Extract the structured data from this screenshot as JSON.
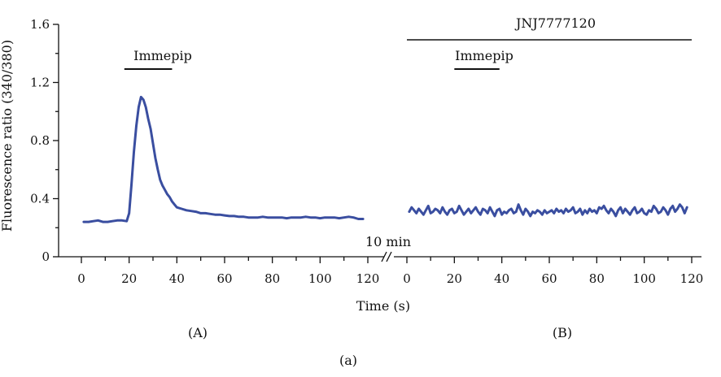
{
  "chart_data": {
    "type": "line",
    "ylabel": "Fluorescence ratio (340/380)",
    "xlabel": "Time (s)",
    "ylim": [
      0,
      1.6
    ],
    "yticks": [
      "0",
      "0.4",
      "0.8",
      "1.2",
      "1.6"
    ],
    "xlim": [
      0,
      120
    ],
    "xticks": [
      "0",
      "20",
      "40",
      "60",
      "80",
      "100",
      "120"
    ],
    "break_label": "10 min",
    "figure_label": "(a)",
    "panels": [
      {
        "label": "(A)",
        "series_color": "#3a4ea0",
        "stimulus": {
          "label": "Immepip",
          "start": 18,
          "end": 38
        },
        "series": [
          {
            "x": [
              1,
              3,
              5,
              7,
              9,
              11,
              13,
              15,
              17,
              19,
              20,
              21,
              22,
              23,
              24,
              25,
              26,
              27,
              28,
              29,
              30,
              31,
              32,
              33,
              34,
              35,
              36,
              37,
              38,
              39,
              40,
              42,
              44,
              46,
              48,
              50,
              52,
              54,
              56,
              58,
              60,
              62,
              64,
              66,
              68,
              70,
              72,
              74,
              76,
              78,
              80,
              82,
              84,
              86,
              88,
              90,
              92,
              94,
              96,
              98,
              100,
              102,
              104,
              106,
              108,
              110,
              112,
              114,
              116,
              118
            ],
            "values": [
              0.24,
              0.24,
              0.245,
              0.25,
              0.24,
              0.24,
              0.245,
              0.25,
              0.25,
              0.245,
              0.3,
              0.5,
              0.72,
              0.9,
              1.03,
              1.1,
              1.08,
              1.03,
              0.95,
              0.88,
              0.78,
              0.68,
              0.6,
              0.53,
              0.49,
              0.46,
              0.43,
              0.41,
              0.38,
              0.36,
              0.34,
              0.33,
              0.32,
              0.315,
              0.31,
              0.3,
              0.3,
              0.295,
              0.29,
              0.29,
              0.285,
              0.28,
              0.28,
              0.275,
              0.275,
              0.27,
              0.27,
              0.27,
              0.275,
              0.27,
              0.27,
              0.27,
              0.27,
              0.265,
              0.27,
              0.27,
              0.27,
              0.275,
              0.27,
              0.27,
              0.265,
              0.27,
              0.27,
              0.27,
              0.265,
              0.27,
              0.275,
              0.27,
              0.26,
              0.26
            ]
          }
        ]
      },
      {
        "label": "(B)",
        "series_color": "#3a4ea0",
        "drug_label": "JNJ7777120",
        "drug_range": [
          0,
          120
        ],
        "stimulus": {
          "label": "Immepip",
          "start": 20,
          "end": 39
        },
        "series": [
          {
            "x": [
              1,
              2,
              3,
              4,
              5,
              6,
              7,
              8,
              9,
              10,
              11,
              12,
              13,
              14,
              15,
              16,
              17,
              18,
              19,
              20,
              21,
              22,
              23,
              24,
              25,
              26,
              27,
              28,
              29,
              30,
              31,
              32,
              33,
              34,
              35,
              36,
              37,
              38,
              39,
              40,
              41,
              42,
              43,
              44,
              45,
              46,
              47,
              48,
              49,
              50,
              51,
              52,
              53,
              54,
              55,
              56,
              57,
              58,
              59,
              60,
              61,
              62,
              63,
              64,
              65,
              66,
              67,
              68,
              69,
              70,
              71,
              72,
              73,
              74,
              75,
              76,
              77,
              78,
              79,
              80,
              81,
              82,
              83,
              84,
              85,
              86,
              87,
              88,
              89,
              90,
              91,
              92,
              93,
              94,
              95,
              96,
              97,
              98,
              99,
              100,
              101,
              102,
              103,
              104,
              105,
              106,
              107,
              108,
              109,
              110,
              111,
              112,
              113,
              114,
              115,
              116,
              117,
              118
            ],
            "values": [
              0.31,
              0.34,
              0.32,
              0.3,
              0.33,
              0.31,
              0.29,
              0.32,
              0.35,
              0.3,
              0.31,
              0.33,
              0.32,
              0.3,
              0.34,
              0.31,
              0.29,
              0.32,
              0.33,
              0.3,
              0.31,
              0.35,
              0.32,
              0.29,
              0.31,
              0.33,
              0.3,
              0.32,
              0.34,
              0.31,
              0.29,
              0.33,
              0.32,
              0.3,
              0.34,
              0.31,
              0.28,
              0.32,
              0.33,
              0.29,
              0.31,
              0.3,
              0.32,
              0.33,
              0.3,
              0.31,
              0.36,
              0.32,
              0.29,
              0.33,
              0.31,
              0.28,
              0.31,
              0.3,
              0.32,
              0.31,
              0.29,
              0.32,
              0.3,
              0.31,
              0.32,
              0.3,
              0.33,
              0.31,
              0.32,
              0.3,
              0.33,
              0.31,
              0.32,
              0.34,
              0.3,
              0.31,
              0.33,
              0.29,
              0.32,
              0.3,
              0.33,
              0.31,
              0.32,
              0.3,
              0.34,
              0.33,
              0.35,
              0.32,
              0.3,
              0.33,
              0.31,
              0.28,
              0.32,
              0.34,
              0.3,
              0.33,
              0.31,
              0.29,
              0.32,
              0.34,
              0.3,
              0.31,
              0.33,
              0.3,
              0.29,
              0.32,
              0.31,
              0.35,
              0.33,
              0.3,
              0.31,
              0.34,
              0.32,
              0.29,
              0.33,
              0.35,
              0.31,
              0.33,
              0.36,
              0.34,
              0.3,
              0.34
            ]
          }
        ]
      }
    ]
  }
}
